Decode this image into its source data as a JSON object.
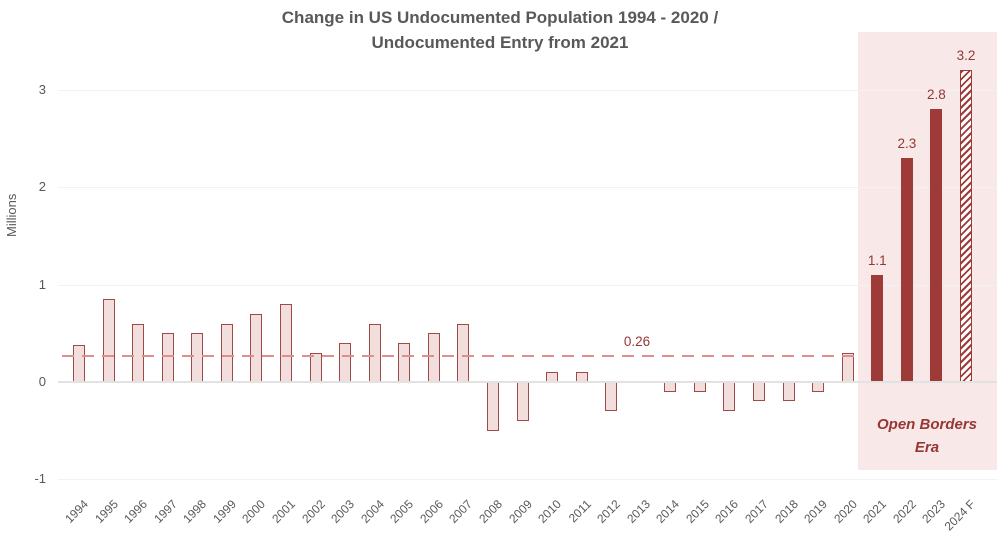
{
  "chart_data": {
    "type": "bar",
    "title_lines": [
      "Change in US Undocumented Population 1994 - 2020 /",
      "Undocumented Entry from 2021"
    ],
    "ylabel": "Millions",
    "categories": [
      "1994",
      "1995",
      "1996",
      "1997",
      "1998",
      "1999",
      "2000",
      "2001",
      "2002",
      "2003",
      "2004",
      "2005",
      "2006",
      "2007",
      "2008",
      "2009",
      "2010",
      "2011",
      "2012",
      "2013",
      "2014",
      "2015",
      "2016",
      "2017",
      "2018",
      "2019",
      "2020",
      "2021",
      "2022",
      "2023",
      "2024 F"
    ],
    "values": [
      0.38,
      0.85,
      0.6,
      0.5,
      0.5,
      0.6,
      0.7,
      0.8,
      0.3,
      0.4,
      0.6,
      0.4,
      0.5,
      0.6,
      -0.5,
      -0.4,
      0.1,
      0.1,
      -0.3,
      0,
      -0.1,
      -0.1,
      -0.3,
      -0.2,
      -0.2,
      -0.1,
      0.3,
      1.1,
      2.3,
      2.8,
      3.2
    ],
    "bar_styles": [
      "light",
      "light",
      "light",
      "light",
      "light",
      "light",
      "light",
      "light",
      "light",
      "light",
      "light",
      "light",
      "light",
      "light",
      "light",
      "light",
      "light",
      "light",
      "light",
      "light",
      "light",
      "light",
      "light",
      "light",
      "light",
      "light",
      "light",
      "dark",
      "dark",
      "dark",
      "hatched"
    ],
    "bar_value_labels": [
      "",
      "",
      "",
      "",
      "",
      "",
      "",
      "",
      "",
      "",
      "",
      "",
      "",
      "",
      "",
      "",
      "",
      "",
      "",
      "",
      "",
      "",
      "",
      "",
      "",
      "",
      "",
      "1.1",
      "2.3",
      "2.8",
      "3.2"
    ],
    "yticks": [
      3,
      2,
      1,
      0,
      -1
    ],
    "ytick_labels": [
      "3",
      "2",
      "1",
      "0",
      "-1"
    ],
    "ylim": [
      -1,
      3.3
    ],
    "grid": "horizontal",
    "legend": "none",
    "average_line": {
      "value": 0.26,
      "label": "0.26"
    },
    "highlight_region": {
      "label": "Open Borders Era",
      "start_category": "2021",
      "end_category": "2024 F"
    }
  },
  "colors": {
    "title_text": "#595959",
    "axis_text": "#595959",
    "bar_light_fill": "#f2dedd",
    "bar_light_border": "#9c4b48",
    "bar_dark": "#9e3b38",
    "hatch_bg": "#ffffff",
    "average_line": "#dd908d",
    "annotation_text": "#953735",
    "region_fill": "#f8e9e8",
    "gridline": "#f2f2f2",
    "zero_line": "#e2e2e2"
  }
}
